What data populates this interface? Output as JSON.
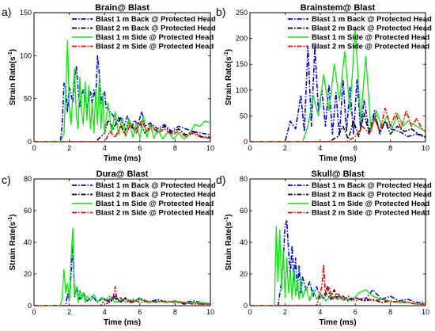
{
  "chart_data": [
    {
      "panel_label": "a)",
      "type": "line",
      "title": "Brain@ Blast",
      "xlabel": "Time (ms)",
      "ylabel": "Strain Rate(s",
      "ylabel_sup": "-1",
      "ylabel_end": ")",
      "xlim": [
        0,
        10
      ],
      "ylim": [
        0,
        150
      ],
      "xticks": [
        0,
        2,
        4,
        6,
        8,
        10
      ],
      "yticks": [
        0,
        50,
        100,
        150
      ],
      "legend": "top-right",
      "series": [
        {
          "name": "Blast 1 m Back @ Protected Head",
          "color": "#0000ff",
          "dash": "dashdot",
          "x": [
            0,
            1.5,
            1.6,
            1.7,
            1.8,
            1.9,
            2.0,
            2.1,
            2.2,
            2.3,
            2.4,
            2.5,
            2.6,
            2.7,
            2.8,
            2.9,
            3.0,
            3.1,
            3.2,
            3.3,
            3.4,
            3.5,
            3.6,
            3.7,
            3.8,
            3.9,
            4.0,
            4.1,
            4.2,
            4.3,
            4.5,
            4.7,
            4.9,
            5.1,
            5.3,
            5.5,
            5.7,
            5.9,
            6.1,
            6.3,
            6.6,
            7.0,
            7.4,
            7.8,
            8.2,
            8.6,
            9.0,
            9.5,
            10
          ],
          "y": [
            0,
            0,
            20,
            68,
            60,
            35,
            63,
            55,
            45,
            72,
            88,
            60,
            40,
            55,
            60,
            48,
            40,
            50,
            58,
            45,
            60,
            50,
            100,
            80,
            45,
            55,
            58,
            38,
            40,
            35,
            30,
            20,
            28,
            18,
            30,
            15,
            25,
            20,
            35,
            18,
            22,
            15,
            20,
            12,
            18,
            15,
            12,
            10,
            8
          ]
        },
        {
          "name": "Blast 2 m Back @ Protected Head",
          "color": "#000000",
          "dash": "dashdot",
          "x": [
            0,
            3.5,
            4.0,
            4.2,
            4.5,
            4.8,
            5.1,
            5.4,
            5.7,
            6.0,
            6.3,
            6.6,
            7.0,
            7.4,
            7.8,
            8.2,
            8.6,
            9.0,
            9.5,
            10
          ],
          "y": [
            0,
            0,
            10,
            25,
            15,
            28,
            10,
            25,
            12,
            22,
            10,
            20,
            12,
            18,
            10,
            15,
            8,
            12,
            6,
            5
          ]
        },
        {
          "name": "Blast 1 m Side @ Protected Head",
          "color": "#00ee00",
          "dash": "solid",
          "x": [
            0,
            1.5,
            1.7,
            1.8,
            1.9,
            2.0,
            2.1,
            2.2,
            2.3,
            2.4,
            2.5,
            2.6,
            2.7,
            2.8,
            2.9,
            3.0,
            3.1,
            3.2,
            3.3,
            3.4,
            3.5,
            3.6,
            3.7,
            3.8,
            3.9,
            4.0,
            4.2,
            4.4,
            4.6,
            4.8,
            5.0,
            5.2,
            5.4,
            5.6,
            5.8,
            6.0,
            6.2,
            6.4,
            6.6,
            6.8,
            7.0,
            7.3,
            7.6,
            7.9,
            8.2,
            8.5,
            8.8,
            9.1,
            9.4,
            9.7,
            10
          ],
          "y": [
            0,
            0,
            10,
            60,
            118,
            40,
            20,
            55,
            85,
            30,
            15,
            75,
            35,
            20,
            70,
            25,
            65,
            15,
            45,
            10,
            60,
            20,
            75,
            15,
            55,
            10,
            45,
            10,
            35,
            8,
            28,
            6,
            25,
            5,
            22,
            4,
            30,
            5,
            20,
            4,
            15,
            3,
            12,
            3,
            10,
            3,
            8,
            20,
            18,
            24,
            22
          ]
        },
        {
          "name": "Blast 2 m Side @ Protected Head",
          "color": "#ff0000",
          "dash": "dashdot",
          "x": [
            0,
            4.0,
            4.3,
            4.6,
            4.9,
            5.2,
            5.5,
            5.8,
            6.1,
            6.4,
            6.7,
            7.0,
            7.4,
            7.8,
            8.2,
            8.6,
            9.0,
            9.5,
            10
          ],
          "y": [
            0,
            0,
            12,
            5,
            18,
            8,
            22,
            10,
            25,
            12,
            18,
            10,
            15,
            8,
            12,
            6,
            10,
            5,
            4
          ]
        }
      ]
    },
    {
      "panel_label": "b)",
      "type": "line",
      "title": "Brainstem@ Blast",
      "xlabel": "Time (ms)",
      "ylabel": "Strain Rate(s",
      "ylabel_sup": "-1",
      "ylabel_end": ")",
      "xlim": [
        0,
        10
      ],
      "ylim": [
        0,
        250
      ],
      "xticks": [
        0,
        2,
        4,
        6,
        8,
        10
      ],
      "yticks": [
        0,
        50,
        100,
        150,
        200,
        250
      ],
      "legend": "top-right",
      "series": [
        {
          "name": "Blast 1 m Back @ Protected Head",
          "color": "#0000ff",
          "dash": "dashdot",
          "x": [
            0,
            2.0,
            2.3,
            2.6,
            2.9,
            3.1,
            3.3,
            3.5,
            3.7,
            3.9,
            4.1,
            4.3,
            4.5,
            4.7,
            4.9,
            5.1,
            5.3,
            5.5,
            5.7,
            5.9,
            6.1,
            6.3,
            6.5,
            6.8,
            7.1,
            7.4,
            7.7,
            8.0,
            8.5,
            9.0,
            9.5,
            10
          ],
          "y": [
            0,
            0,
            40,
            25,
            90,
            20,
            185,
            30,
            185,
            60,
            100,
            30,
            110,
            15,
            95,
            10,
            120,
            20,
            105,
            15,
            120,
            25,
            80,
            20,
            60,
            15,
            40,
            25,
            20,
            10,
            15,
            8
          ]
        },
        {
          "name": "Blast 2 m Back @ Protected Head",
          "color": "#000000",
          "dash": "dashdot",
          "x": [
            0,
            4.5,
            5.0,
            5.3,
            5.6,
            5.9,
            6.2,
            6.5,
            6.8,
            7.1,
            7.4,
            7.7,
            8.0,
            8.4,
            8.8,
            9.2,
            9.6,
            10
          ],
          "y": [
            0,
            0,
            10,
            30,
            5,
            40,
            10,
            55,
            15,
            50,
            20,
            40,
            15,
            30,
            20,
            25,
            15,
            10
          ]
        },
        {
          "name": "Blast 1 m Side @ Protected Head",
          "color": "#00ee00",
          "dash": "solid",
          "x": [
            0,
            3.0,
            3.3,
            3.6,
            3.9,
            4.2,
            4.5,
            4.8,
            5.1,
            5.4,
            5.7,
            6.0,
            6.3,
            6.6,
            6.9,
            7.2,
            7.5,
            7.8,
            8.1,
            8.4,
            8.7,
            9.0,
            9.5,
            10
          ],
          "y": [
            0,
            0,
            30,
            90,
            50,
            130,
            60,
            150,
            80,
            175,
            60,
            220,
            40,
            165,
            20,
            60,
            30,
            50,
            25,
            55,
            30,
            40,
            30,
            20
          ]
        },
        {
          "name": "Blast 2 m Side @ Protected Head",
          "color": "#ff0000",
          "dash": "dashdot",
          "x": [
            0,
            5.5,
            6.0,
            6.4,
            6.8,
            7.1,
            7.4,
            7.7,
            8.0,
            8.3,
            8.6,
            8.9,
            9.2,
            9.5,
            9.8,
            10
          ],
          "y": [
            0,
            0,
            10,
            30,
            15,
            45,
            20,
            65,
            30,
            55,
            25,
            60,
            30,
            45,
            25,
            20
          ]
        }
      ]
    },
    {
      "panel_label": "c)",
      "type": "line",
      "title": "Dura@ Blast",
      "xlabel": "Time (ms)",
      "ylabel": "Strain Rate(s",
      "ylabel_sup": "-1",
      "ylabel_end": ")",
      "xlim": [
        0,
        10
      ],
      "ylim": [
        0,
        80
      ],
      "xticks": [
        0,
        2,
        4,
        6,
        8,
        10
      ],
      "yticks": [
        0,
        20,
        40,
        60,
        80
      ],
      "legend": "top-right",
      "series": [
        {
          "name": "Blast 1 m Back @ Protected Head",
          "color": "#0000ff",
          "dash": "dashdot",
          "x": [
            0,
            1.8,
            1.9,
            2.0,
            2.1,
            2.2,
            2.3,
            2.4,
            2.6,
            2.8,
            3.0,
            3.3,
            3.6,
            3.9,
            4.2,
            4.5,
            4.8,
            5.2,
            5.6,
            6.0,
            6.5,
            7.0,
            7.5,
            8.0,
            8.5,
            9.0,
            9.5,
            10
          ],
          "y": [
            0,
            0,
            8,
            3,
            20,
            38,
            5,
            12,
            4,
            8,
            3,
            6,
            2,
            5,
            3,
            6,
            2,
            4,
            2,
            5,
            2,
            4,
            2,
            3,
            2,
            3,
            2,
            1
          ]
        },
        {
          "name": "Blast 2 m Back @ Protected Head",
          "color": "#000000",
          "dash": "dashdot",
          "x": [
            0,
            3.8,
            4.0,
            4.3,
            4.6,
            4.9,
            5.2,
            5.5,
            6.0,
            6.5,
            7.0,
            7.5,
            8.0,
            8.5,
            9.0,
            9.5,
            10
          ],
          "y": [
            0,
            0,
            4,
            2,
            6,
            2,
            5,
            2,
            4,
            2,
            3,
            2,
            3,
            1,
            2,
            1,
            1
          ]
        },
        {
          "name": "Blast 1 m Side @ Protected Head",
          "color": "#00ee00",
          "dash": "solid",
          "x": [
            0,
            1.5,
            1.6,
            1.7,
            1.8,
            1.9,
            2.0,
            2.1,
            2.2,
            2.3,
            2.4,
            2.5,
            2.6,
            2.7,
            2.8,
            2.9,
            3.0,
            3.2,
            3.4,
            3.6,
            3.8,
            4.0,
            4.3,
            4.6,
            5.0,
            5.5,
            6.0,
            6.5,
            7.0,
            7.5,
            8.0,
            8.5,
            9.0,
            9.5,
            10
          ],
          "y": [
            0,
            0,
            5,
            23,
            8,
            14,
            3,
            30,
            49,
            6,
            12,
            2,
            10,
            4,
            8,
            2,
            6,
            3,
            7,
            2,
            5,
            3,
            6,
            2,
            4,
            3,
            4,
            2,
            3,
            2,
            3,
            2,
            2,
            2,
            1
          ]
        },
        {
          "name": "Blast 2 m Side @ Protected Head",
          "color": "#ff0000",
          "dash": "dashdot",
          "x": [
            0,
            4.0,
            4.3,
            4.5,
            4.6,
            4.7,
            4.9,
            5.2,
            5.6,
            6.0,
            6.5,
            7.0,
            7.5,
            8.0,
            8.5,
            9.0,
            9.5,
            10
          ],
          "y": [
            0,
            0,
            3,
            6,
            12,
            4,
            5,
            2,
            4,
            2,
            3,
            2,
            3,
            2,
            2,
            1,
            1,
            1
          ]
        }
      ]
    },
    {
      "panel_label": "d)",
      "type": "line",
      "title": "Skull@ Blast",
      "xlabel": "Time (ms)",
      "ylabel": "Strain Rate(s",
      "ylabel_sup": "-1",
      "ylabel_end": ")",
      "xlim": [
        0,
        10
      ],
      "ylim": [
        0,
        80
      ],
      "xticks": [
        0,
        2,
        4,
        6,
        8,
        10
      ],
      "yticks": [
        0,
        20,
        40,
        60,
        80
      ],
      "legend": "top-right",
      "series": [
        {
          "name": "Blast 1 m Back @ Protected Head",
          "color": "#0000ff",
          "dash": "dashdot",
          "x": [
            0,
            1.6,
            1.8,
            1.9,
            2.0,
            2.1,
            2.2,
            2.3,
            2.4,
            2.5,
            2.6,
            2.7,
            2.8,
            2.9,
            3.0,
            3.2,
            3.4,
            3.6,
            3.8,
            4.0,
            4.3,
            4.6,
            5.0,
            5.5,
            6.0,
            6.5,
            7.0,
            7.5,
            8.0,
            8.5,
            9.0,
            9.5,
            10
          ],
          "y": [
            0,
            0,
            15,
            30,
            50,
            54,
            35,
            20,
            38,
            15,
            30,
            10,
            25,
            8,
            18,
            10,
            15,
            6,
            12,
            5,
            8,
            4,
            6,
            4,
            5,
            3,
            10,
            4,
            6,
            3,
            4,
            2,
            2
          ]
        },
        {
          "name": "Blast 2 m Back @ Protected Head",
          "color": "#000000",
          "dash": "dashdot",
          "x": [
            0,
            3.8,
            4.0,
            4.2,
            4.4,
            4.6,
            4.8,
            5.0,
            5.3,
            5.6,
            6.0,
            6.5,
            7.0,
            7.5,
            8.0,
            8.5,
            9.0,
            9.5,
            10
          ],
          "y": [
            0,
            0,
            8,
            4,
            12,
            5,
            10,
            4,
            6,
            3,
            5,
            3,
            4,
            2,
            3,
            2,
            2,
            1,
            1
          ]
        },
        {
          "name": "Blast 1 m Side @ Protected Head",
          "color": "#00ee00",
          "dash": "solid",
          "x": [
            0,
            1.4,
            1.5,
            1.6,
            1.7,
            1.8,
            1.9,
            2.0,
            2.1,
            2.2,
            2.3,
            2.4,
            2.5,
            2.6,
            2.7,
            2.8,
            2.9,
            3.0,
            3.2,
            3.4,
            3.6,
            3.8,
            4.0,
            4.3,
            4.6,
            5.0,
            5.4,
            5.8,
            6.2,
            6.6,
            7.0,
            7.5,
            8.0,
            8.5,
            9.0,
            9.5,
            10
          ],
          "y": [
            0,
            0,
            50,
            15,
            48,
            10,
            35,
            5,
            30,
            8,
            22,
            4,
            25,
            6,
            15,
            4,
            18,
            5,
            12,
            3,
            10,
            4,
            8,
            3,
            6,
            4,
            5,
            3,
            8,
            10,
            6,
            4,
            3,
            2,
            2,
            1,
            1
          ]
        },
        {
          "name": "Blast 2 m Side @ Protected Head",
          "color": "#ff0000",
          "dash": "dashdot",
          "x": [
            0,
            3.8,
            4.0,
            4.1,
            4.2,
            4.3,
            4.5,
            4.7,
            5.0,
            5.3,
            5.6,
            6.0,
            6.5,
            7.0,
            7.5,
            8.0,
            8.5,
            9.0,
            9.5,
            10
          ],
          "y": [
            0,
            0,
            8,
            12,
            26,
            6,
            12,
            4,
            8,
            3,
            6,
            3,
            5,
            3,
            4,
            2,
            3,
            2,
            1,
            1
          ]
        }
      ]
    }
  ]
}
